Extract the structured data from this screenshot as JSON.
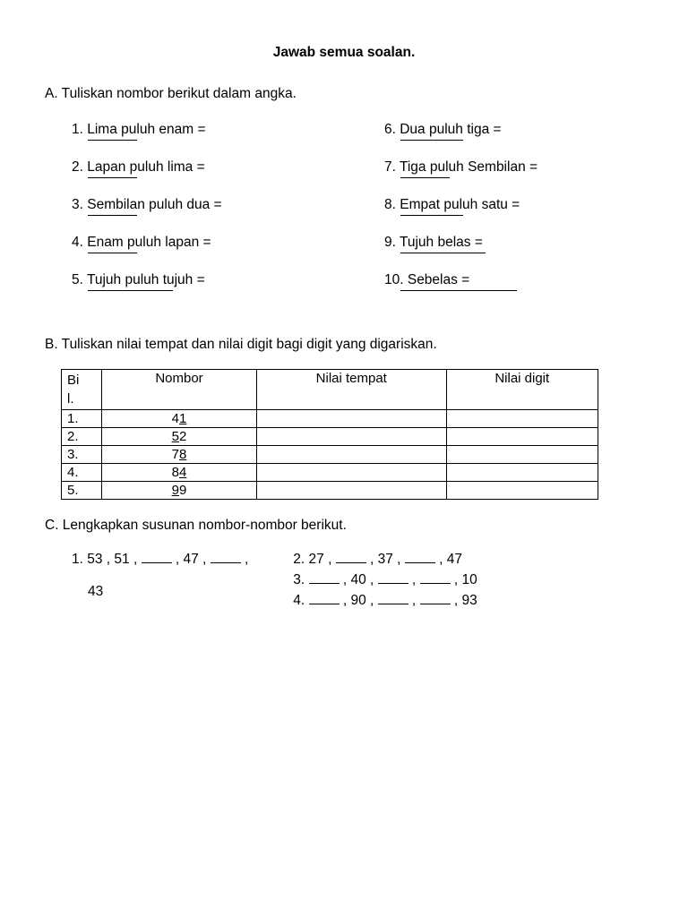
{
  "title": "Jawab semua soalan.",
  "sectionA": {
    "heading": "A. Tuliskan nombor berikut dalam angka.",
    "leftItems": [
      {
        "num": "1.",
        "text": "Lima puluh enam  =",
        "blank": "short"
      },
      {
        "num": "2.",
        "text": "Lapan puluh lima =",
        "blank": "short"
      },
      {
        "num": "3.",
        "text": "Sembilan puluh dua =",
        "blank": "short"
      },
      {
        "num": "4.",
        "text": "Enam puluh lapan =",
        "blank": "short"
      },
      {
        "num": "5.",
        "text": "Tujuh puluh tujuh =",
        "blank": "long"
      }
    ],
    "rightItems": [
      {
        "num": "6.",
        "text": "Dua puluh tiga =",
        "blank": "med"
      },
      {
        "num": "7.",
        "text": "Tiga puluh Sembilan =",
        "blank": "short"
      },
      {
        "num": "8.",
        "text": "Empat puluh satu =",
        "blank": "med"
      },
      {
        "num": "9.",
        "text": "Tujuh belas =",
        "blank": "long"
      },
      {
        "num": "10.",
        "text": "Sebelas =",
        "blank": "xlong"
      }
    ]
  },
  "sectionB": {
    "heading": "B. Tuliskan nilai tempat dan nilai digit bagi digit yang digariskan.",
    "columns": [
      "Bil.",
      "Nombor",
      "Nilai tempat",
      "Nilai digit"
    ],
    "rows": [
      {
        "bil": "1.",
        "pre": "4",
        "u": "1"
      },
      {
        "bil": "2.",
        "pre": "",
        "u": "5",
        "post": "2"
      },
      {
        "bil": "3.",
        "pre": "7",
        "u": "8"
      },
      {
        "bil": "4.",
        "pre": "8",
        "u": "4"
      },
      {
        "bil": "5.",
        "pre": "",
        "u": "9",
        "post": "9"
      }
    ]
  },
  "sectionC": {
    "heading": "C. Lengkapkan susunan nombor-nombor berikut.",
    "left": {
      "num": "1.",
      "seq": [
        "53",
        "51",
        "_",
        "47",
        "_",
        ""
      ],
      "tail": "43"
    },
    "right": [
      {
        "num": "2.",
        "seq": [
          "27",
          "_",
          "37",
          "_",
          "47"
        ]
      },
      {
        "num": "3.",
        "seq": [
          "_",
          "40",
          "_",
          "_",
          "10"
        ]
      },
      {
        "num": "4.",
        "seq": [
          "_",
          "90",
          "_",
          "_",
          "93"
        ]
      }
    ]
  }
}
